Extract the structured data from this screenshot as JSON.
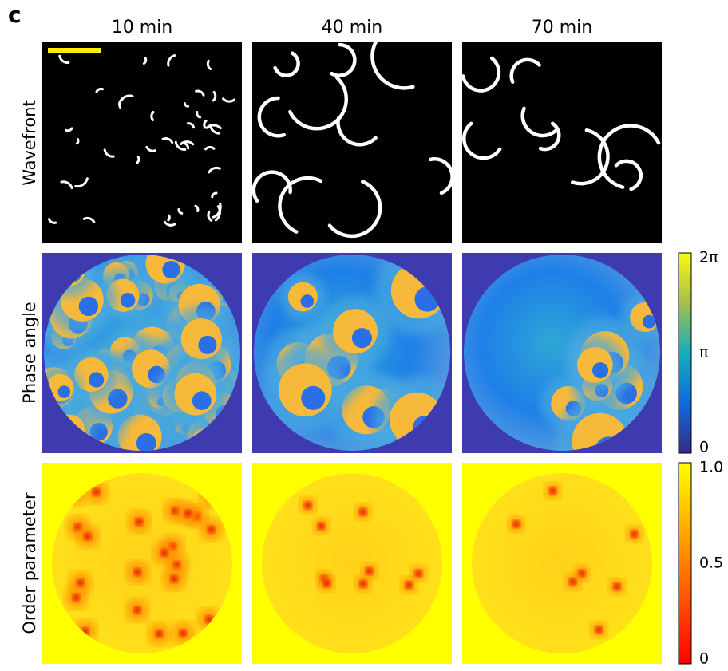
{
  "panel_label": "c",
  "columns": [
    "10 min",
    "40 min",
    "70 min"
  ],
  "rows": [
    "Wavefront",
    "Phase angle",
    "Order parameter"
  ],
  "colorbars": [
    {
      "ticks": [
        "2π",
        "π",
        "0"
      ]
    },
    {
      "ticks": [
        "1.0",
        "0.5",
        "0"
      ]
    }
  ]
}
